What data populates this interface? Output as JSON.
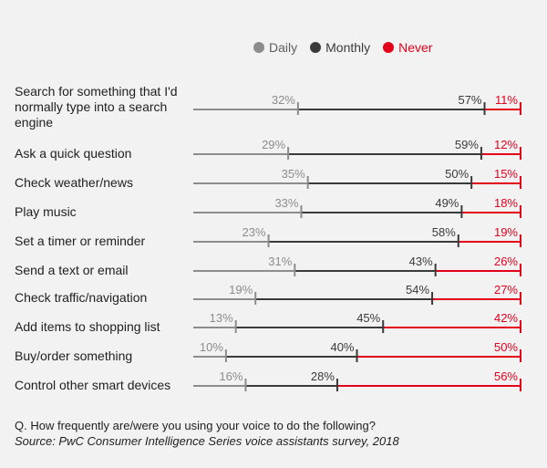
{
  "legend": {
    "daily_label": "Daily",
    "monthly_label": "Monthly",
    "never_label": "Never"
  },
  "colors": {
    "daily": "#8c8c8c",
    "monthly": "#3a3a3a",
    "never": "#e3001b",
    "text": "#1f1f1f"
  },
  "footer": {
    "question": "Q. How frequently are/were you using your voice to do the following?",
    "source": "Source: PwC Consumer Intelligence Series voice assistants survey, 2018"
  },
  "chart_data": {
    "type": "bar",
    "orientation": "horizontal-cumulative-markers",
    "categories": [
      "Search for something that I'd normally type into a search engine",
      "Ask a quick question",
      "Check weather/news",
      "Play music",
      "Set a timer or reminder",
      "Send a text or email",
      "Check traffic/navigation",
      "Add items to shopping list",
      "Buy/order something",
      "Control other smart devices"
    ],
    "series": [
      {
        "name": "Daily",
        "values": [
          32,
          29,
          35,
          33,
          23,
          31,
          19,
          13,
          10,
          16
        ]
      },
      {
        "name": "Monthly",
        "values": [
          57,
          59,
          50,
          49,
          58,
          43,
          54,
          45,
          40,
          28
        ]
      },
      {
        "name": "Never",
        "values": [
          11,
          12,
          15,
          18,
          19,
          26,
          27,
          42,
          50,
          56
        ]
      }
    ],
    "value_suffix": "%",
    "legend_position": "top",
    "grid": false
  }
}
